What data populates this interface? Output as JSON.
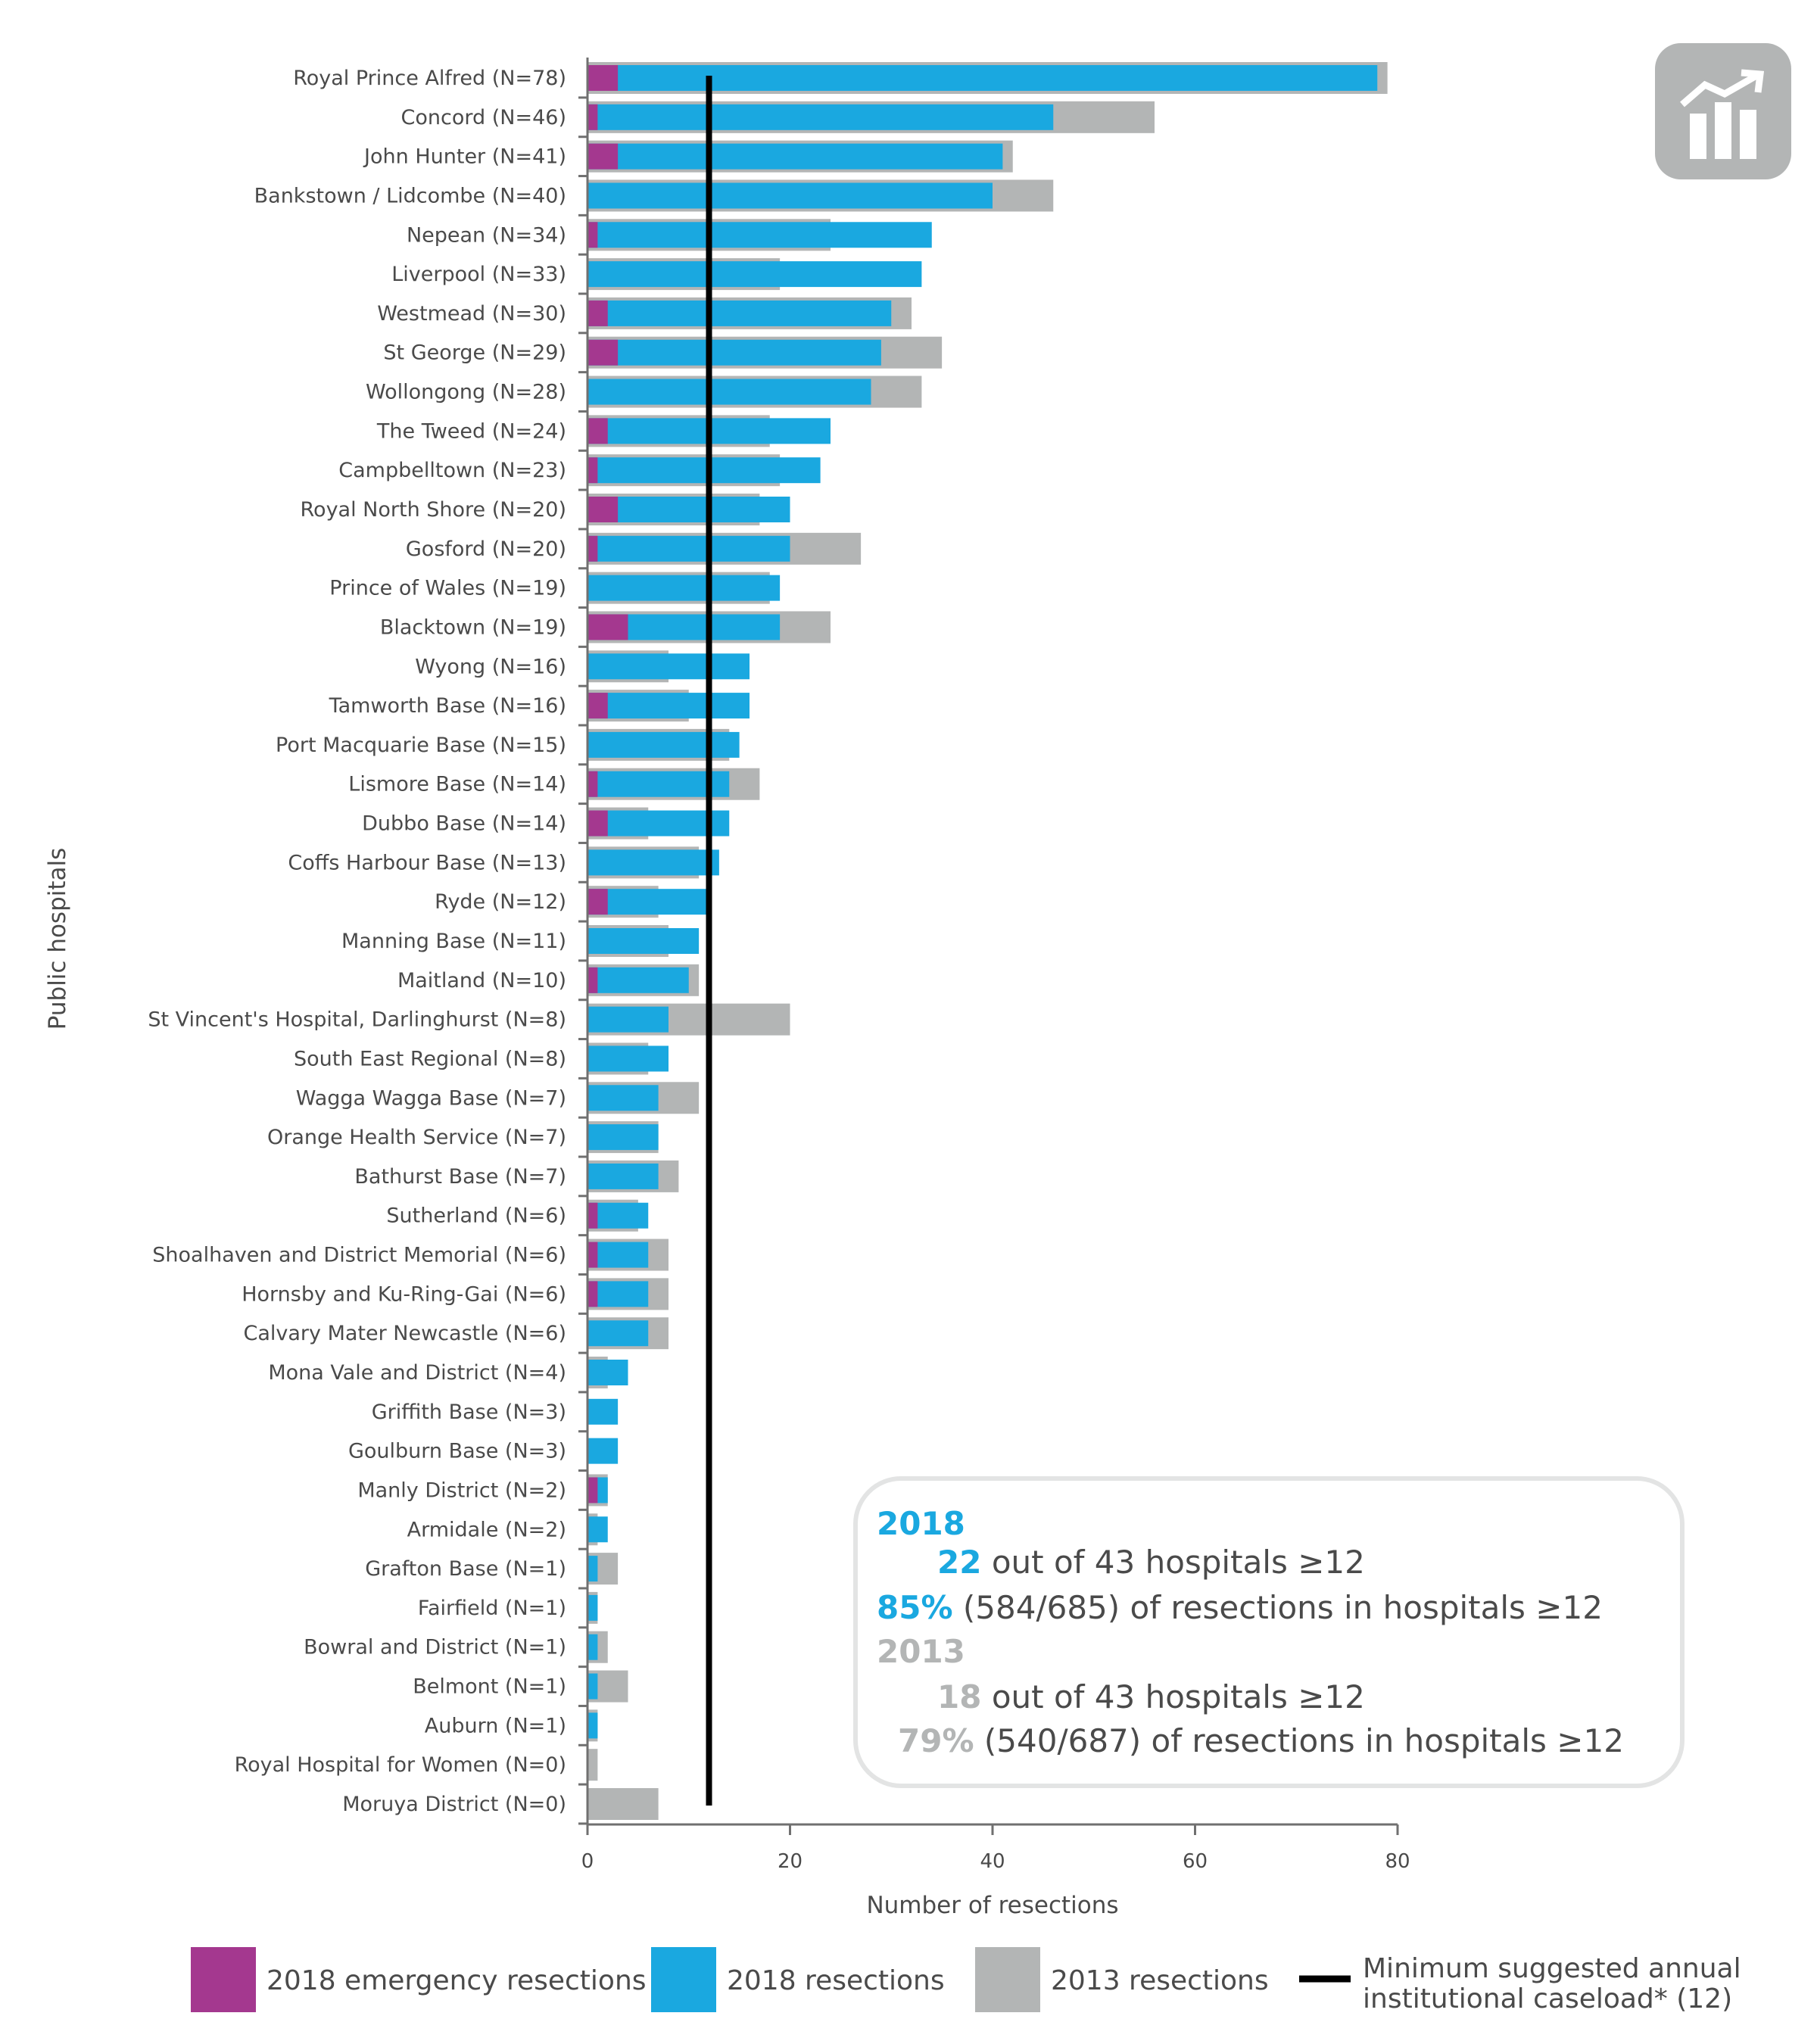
{
  "chart_data": {
    "type": "bar",
    "orientation": "horizontal",
    "ylabel": "Public hospitals",
    "xlabel": "Number of resections",
    "xlim": [
      0,
      80
    ],
    "xticks": [
      "0",
      "20",
      "40",
      "60",
      "80"
    ],
    "grid": false,
    "legend_position": "bottom",
    "colors": {
      "emergency_2018": "#a4388f",
      "resections_2018": "#1aa8e0",
      "resections_2013": "#b3b5b5",
      "threshold": "#000000"
    },
    "categories": [
      "Royal Prince Alfred (N=78)",
      "Concord (N=46)",
      "John Hunter (N=41)",
      "Bankstown / Lidcombe (N=40)",
      "Nepean (N=34)",
      "Liverpool (N=33)",
      "Westmead (N=30)",
      "St George (N=29)",
      "Wollongong (N=28)",
      "The Tweed (N=24)",
      "Campbelltown (N=23)",
      "Royal North Shore (N=20)",
      "Gosford (N=20)",
      "Prince of Wales (N=19)",
      "Blacktown (N=19)",
      "Wyong (N=16)",
      "Tamworth Base (N=16)",
      "Port Macquarie Base (N=15)",
      "Lismore Base (N=14)",
      "Dubbo Base (N=14)",
      "Coffs Harbour Base (N=13)",
      "Ryde (N=12)",
      "Manning Base (N=11)",
      "Maitland (N=10)",
      "St Vincent's Hospital, Darlinghurst (N=8)",
      "South East Regional (N=8)",
      "Wagga Wagga Base (N=7)",
      "Orange Health Service (N=7)",
      "Bathurst Base (N=7)",
      "Sutherland (N=6)",
      "Shoalhaven and District Memorial (N=6)",
      "Hornsby and Ku-Ring-Gai (N=6)",
      "Calvary Mater Newcastle (N=6)",
      "Mona Vale and District (N=4)",
      "Griffith Base (N=3)",
      "Goulburn Base (N=3)",
      "Manly District (N=2)",
      "Armidale (N=2)",
      "Grafton Base (N=1)",
      "Fairfield (N=1)",
      "Bowral and District (N=1)",
      "Belmont (N=1)",
      "Auburn (N=1)",
      "Royal Hospital for Women (N=0)",
      "Moruya District (N=0)"
    ],
    "series": [
      {
        "name": "2013 resections",
        "values": [
          79,
          56,
          42,
          46,
          24,
          19,
          32,
          35,
          33,
          18,
          19,
          17,
          27,
          18,
          24,
          8,
          10,
          14,
          17,
          6,
          11,
          7,
          8,
          11,
          20,
          6,
          11,
          7,
          9,
          5,
          8,
          8,
          8,
          2,
          0,
          0,
          2,
          1,
          3,
          1,
          2,
          4,
          1,
          1,
          7
        ]
      },
      {
        "name": "2018 resections",
        "values": [
          78,
          46,
          41,
          40,
          34,
          33,
          30,
          29,
          28,
          24,
          23,
          20,
          20,
          19,
          19,
          16,
          16,
          15,
          14,
          14,
          13,
          12,
          11,
          10,
          8,
          8,
          7,
          7,
          7,
          6,
          6,
          6,
          6,
          4,
          3,
          3,
          2,
          2,
          1,
          1,
          1,
          1,
          1,
          0,
          0
        ]
      },
      {
        "name": "2018 emergency resections",
        "values": [
          3,
          1,
          3,
          0,
          1,
          0,
          2,
          3,
          0,
          2,
          1,
          3,
          1,
          0,
          4,
          0,
          2,
          0,
          1,
          2,
          0,
          2,
          0,
          1,
          0,
          0,
          0,
          0,
          0,
          1,
          1,
          1,
          0,
          0,
          0,
          0,
          1,
          0,
          0,
          0,
          0,
          0,
          0,
          0,
          0
        ]
      }
    ],
    "threshold": {
      "value": 12,
      "name": "Minimum suggested annual institutional caseload* (12)"
    },
    "legend": [
      "2018 emergency resections",
      "2018 resections",
      "2013 resections",
      "Minimum suggested annual",
      "institutional caseload* (12)"
    ]
  },
  "summary": {
    "year_2018": "2018",
    "count_2018": "22",
    "count_2018_text": "out of 43 hospitals ≥12",
    "pct_2018": "85%",
    "pct_2018_text": "(584/685) of resections in hospitals ≥12",
    "year_2013": "2013",
    "count_2013": "18",
    "count_2013_text": "out of 43 hospitals ≥12",
    "pct_2013": "79%",
    "pct_2013_text": "(540/687) of resections in hospitals ≥12"
  },
  "icon": "chart-trend-icon"
}
